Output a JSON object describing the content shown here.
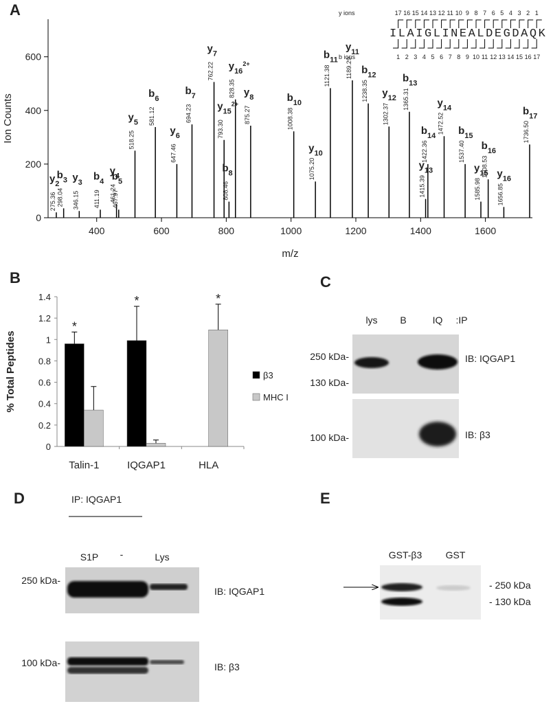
{
  "panel_labels": [
    "A",
    "B",
    "C",
    "D",
    "E"
  ],
  "chart_data": [
    {
      "type": "stem",
      "x_label": "m/z",
      "y_label": "Ion Counts",
      "x": [
        275.36,
        298.04,
        346.15,
        411.19,
        461.24,
        467.97,
        518.25,
        581.12,
        647.46,
        694.23,
        762.22,
        793.3,
        808.46,
        828.35,
        875.27,
        1008.38,
        1075.2,
        1121.38,
        1189.29,
        1238.35,
        1302.37,
        1365.31,
        1415.39,
        1422.36,
        1472.52,
        1537.4,
        1585.98,
        1608.53,
        1656.85,
        1736.5
      ],
      "x_labels": [
        "275.36",
        "298.04",
        "346.15",
        "411.19",
        "461.24",
        "467.97",
        "518.25",
        "581.12",
        "647.46",
        "694.23",
        "762.22",
        "793.30",
        "808.46",
        "828.35",
        "875.27",
        "1008.38",
        "1075.20",
        "1121.38",
        "1189.29",
        "1238.35",
        "1302.37",
        "1365.31",
        "1415.39",
        "1422.36",
        "1472.52",
        "1537.40",
        "1585.98",
        "1608.53",
        "1656.85",
        "1736.50"
      ],
      "values": [
        20,
        35,
        25,
        30,
        50,
        30,
        250,
        338,
        200,
        348,
        506,
        290,
        60,
        441,
        343,
        322,
        135,
        483,
        512,
        426,
        340,
        395,
        70,
        200,
        304,
        200,
        60,
        143,
        40,
        273
      ],
      "ions": [
        [
          "y",
          "2"
        ],
        [
          "b",
          "3"
        ],
        [
          "y",
          "3"
        ],
        [
          "b",
          "4"
        ],
        [
          "y",
          "4"
        ],
        [
          "b",
          "5"
        ],
        [
          "y",
          "5"
        ],
        [
          "b",
          "6"
        ],
        [
          "y",
          "6"
        ],
        [
          "b",
          "7"
        ],
        [
          "y",
          "7"
        ],
        [
          "y",
          "15",
          "2+"
        ],
        [
          "b",
          "8"
        ],
        [
          "y",
          "16",
          "2+"
        ],
        [
          "y",
          "8"
        ],
        [
          "b",
          "10"
        ],
        [
          "y",
          "10"
        ],
        [
          "b",
          "11"
        ],
        [
          "y",
          "11"
        ],
        [
          "b",
          "12"
        ],
        [
          "y",
          "12"
        ],
        [
          "b",
          "13"
        ],
        [
          "y",
          "13"
        ],
        [
          "b",
          "14"
        ],
        [
          "y",
          "14"
        ],
        [
          "b",
          "15"
        ],
        [
          "y",
          "15"
        ],
        [
          "b",
          "16"
        ],
        [
          "y",
          "16"
        ],
        [
          "b",
          "17"
        ]
      ],
      "color": "#000000",
      "xlim": [
        250,
        1745
      ],
      "xticks": [
        400,
        600,
        800,
        1000,
        1200,
        1400,
        1600
      ],
      "ylim": [
        0,
        740
      ],
      "yticks": [
        0,
        200,
        400,
        600
      ],
      "peptide": {
        "y_ions_label": "y ions",
        "y_ions": [
          "17",
          "16",
          "15",
          "14",
          "13",
          "12",
          "11",
          "10",
          "9",
          "8",
          "7",
          "6",
          "5",
          "4",
          "3",
          "2",
          "1"
        ],
        "sequence": "ILAIGLINEALDEGDAQK",
        "b_ions_label": "b ions",
        "b_ions": [
          "1",
          "2",
          "3",
          "4",
          "5",
          "6",
          "7",
          "8",
          "9",
          "10",
          "11",
          "12",
          "13",
          "14",
          "15",
          "16",
          "17"
        ]
      }
    },
    {
      "type": "bar",
      "y_label": "% Total Peptides",
      "categories": [
        "Talin-1",
        "IQGAP1",
        "HLA"
      ],
      "series": [
        {
          "name": "β3",
          "color": "#000000",
          "values": [
            0.96,
            0.99,
            0
          ],
          "errors": [
            0.11,
            0.32,
            null
          ],
          "significance": [
            "*",
            "*",
            null
          ]
        },
        {
          "name": "MHC I",
          "color": "#c8c8c8",
          "values": [
            0.34,
            0.03,
            1.09
          ],
          "errors": [
            0.22,
            0.03,
            0.24
          ],
          "significance": [
            null,
            null,
            "*"
          ]
        }
      ],
      "ylim": [
        0,
        1.4
      ],
      "yticks": [
        0,
        0.2,
        0.4,
        0.6,
        0.8,
        1,
        1.2,
        1.4
      ],
      "legend": "right"
    }
  ],
  "blot_c": {
    "lanes": [
      "lys",
      "B",
      "IQ",
      ":IP"
    ],
    "markers": [
      "250 kDa-",
      "130 kDa-",
      "100 kDa-"
    ],
    "blots": [
      "IB: IQGAP1",
      "IB: β3"
    ]
  },
  "blot_d": {
    "ip": "IP: IQGAP1",
    "lanes": [
      "S1P",
      "-",
      "Lys"
    ],
    "markers": [
      "250 kDa-",
      "100 kDa-"
    ],
    "blots": [
      "IB: IQGAP1",
      "IB: β3"
    ]
  },
  "blot_e": {
    "lanes": [
      "GST-β3",
      "GST"
    ],
    "markers": [
      "- 250 kDa",
      "- 130 kDa"
    ]
  }
}
